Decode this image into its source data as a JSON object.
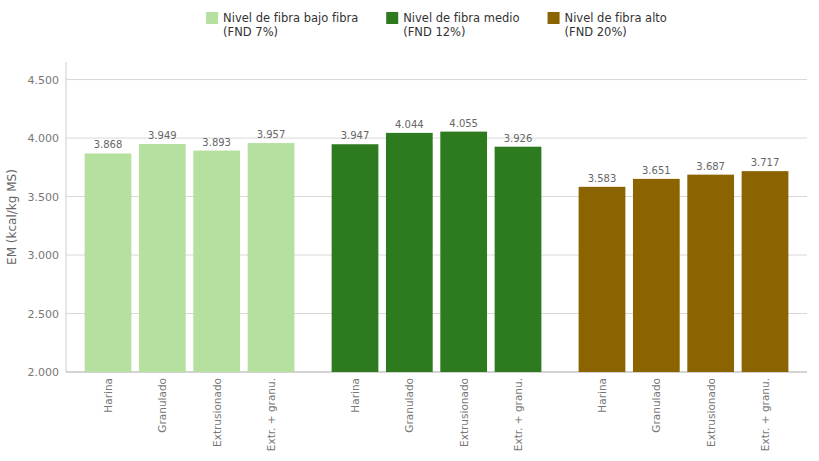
{
  "chart_data": {
    "type": "bar",
    "y_label": "EM (kcal/kg MS)",
    "categories": [
      "Harina",
      "Granulado",
      "Extrusionado",
      "Extr. + granu."
    ],
    "series": [
      {
        "name": "Nivel de fibra bajo fibra\n(FND 7%)",
        "color": "#b5e0a0",
        "values": [
          3.868,
          3.949,
          3.893,
          3.957
        ]
      },
      {
        "name": "Nivel de fibra medio\n(FND 12%)",
        "color": "#2d7a1f",
        "values": [
          3.947,
          4.044,
          4.055,
          3.926
        ]
      },
      {
        "name": "Nivel de fibra alto\n(FND 20%)",
        "color": "#8b6400",
        "values": [
          3.583,
          3.651,
          3.687,
          3.717
        ]
      }
    ],
    "ylim": [
      2.0,
      4.65
    ],
    "yticks": [
      {
        "value": 2.0,
        "label": "2.000"
      },
      {
        "value": 2.5,
        "label": "2.500"
      },
      {
        "value": 3.0,
        "label": "3.000"
      },
      {
        "value": 3.5,
        "label": "3.500"
      },
      {
        "value": 4.0,
        "label": "4.000"
      },
      {
        "value": 4.5,
        "label": "4.500"
      }
    ],
    "grid": true,
    "legend": "top",
    "data_labels": true
  }
}
